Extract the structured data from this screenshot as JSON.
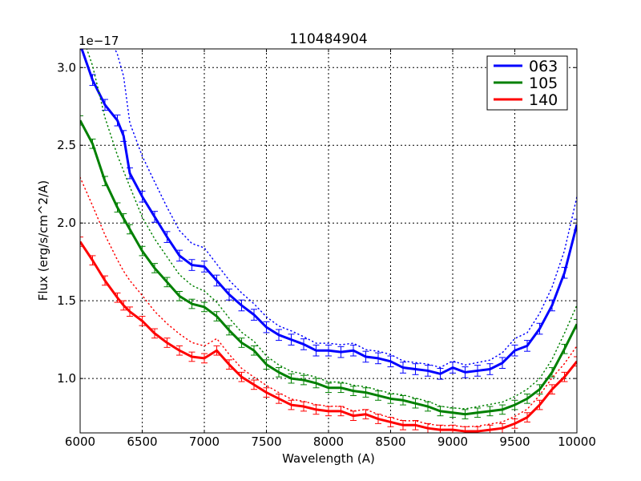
{
  "chart_data": {
    "type": "line",
    "title": "110484904",
    "xlabel": "Wavelength (A)",
    "ylabel": "Flux (erg/s/cm^2/A)",
    "offset_label": "1e−17",
    "xlim": [
      6000,
      10000
    ],
    "ylim": [
      0.65,
      3.12
    ],
    "xticks": [
      6000,
      6500,
      7000,
      7500,
      8000,
      8500,
      9000,
      9500,
      10000
    ],
    "xtick_labels": [
      "6000",
      "6500",
      "7000",
      "7500",
      "8000",
      "8500",
      "9000",
      "9500",
      "10000"
    ],
    "yticks": [
      1.0,
      1.5,
      2.0,
      2.5,
      3.0
    ],
    "ytick_labels": [
      "1.0",
      "1.5",
      "2.0",
      "2.5",
      "3.0"
    ],
    "grid": true,
    "legend_position": "top-right",
    "x": [
      6000,
      6100,
      6200,
      6300,
      6350,
      6400,
      6500,
      6600,
      6700,
      6800,
      6900,
      7000,
      7100,
      7200,
      7300,
      7400,
      7500,
      7600,
      7700,
      7800,
      7900,
      8000,
      8100,
      8200,
      8300,
      8400,
      8500,
      8600,
      8700,
      8800,
      8900,
      9000,
      9100,
      9200,
      9300,
      9400,
      9500,
      9600,
      9700,
      9800,
      9900,
      10000
    ],
    "envelope_frac": [
      0.22,
      0.2,
      0.18,
      0.16,
      0.15,
      0.14,
      0.12,
      0.11,
      0.1,
      0.09,
      0.08,
      0.07,
      0.065,
      0.06,
      0.055,
      0.05,
      0.05,
      0.045,
      0.045,
      0.04,
      0.04,
      0.04,
      0.04,
      0.04,
      0.04,
      0.04,
      0.04,
      0.04,
      0.04,
      0.04,
      0.04,
      0.04,
      0.045,
      0.05,
      0.055,
      0.06,
      0.065,
      0.07,
      0.075,
      0.08,
      0.085,
      0.09
    ],
    "series": [
      {
        "name": "063",
        "color": "#0000ff",
        "error": 0.035,
        "values": [
          3.15,
          2.92,
          2.76,
          2.66,
          2.56,
          2.32,
          2.17,
          2.04,
          1.91,
          1.79,
          1.73,
          1.72,
          1.63,
          1.54,
          1.47,
          1.41,
          1.33,
          1.28,
          1.25,
          1.22,
          1.18,
          1.18,
          1.17,
          1.18,
          1.14,
          1.13,
          1.11,
          1.07,
          1.06,
          1.05,
          1.03,
          1.07,
          1.04,
          1.05,
          1.06,
          1.1,
          1.18,
          1.21,
          1.32,
          1.47,
          1.68,
          1.99
        ]
      },
      {
        "name": "105",
        "color": "#008000",
        "error": 0.03,
        "values": [
          2.66,
          2.51,
          2.27,
          2.1,
          2.03,
          1.96,
          1.82,
          1.71,
          1.62,
          1.53,
          1.48,
          1.46,
          1.4,
          1.31,
          1.23,
          1.18,
          1.09,
          1.04,
          1.0,
          0.99,
          0.97,
          0.94,
          0.94,
          0.92,
          0.91,
          0.89,
          0.87,
          0.86,
          0.84,
          0.82,
          0.79,
          0.78,
          0.77,
          0.78,
          0.79,
          0.8,
          0.83,
          0.87,
          0.93,
          1.04,
          1.19,
          1.35
        ]
      },
      {
        "name": "140",
        "color": "#ff0000",
        "error": 0.03,
        "values": [
          1.88,
          1.76,
          1.63,
          1.52,
          1.47,
          1.43,
          1.37,
          1.29,
          1.23,
          1.18,
          1.14,
          1.13,
          1.18,
          1.09,
          1.01,
          0.96,
          0.91,
          0.87,
          0.83,
          0.82,
          0.8,
          0.79,
          0.79,
          0.76,
          0.77,
          0.74,
          0.72,
          0.7,
          0.7,
          0.68,
          0.67,
          0.67,
          0.66,
          0.66,
          0.67,
          0.68,
          0.71,
          0.75,
          0.83,
          0.93,
          1.01,
          1.11
        ]
      }
    ]
  }
}
